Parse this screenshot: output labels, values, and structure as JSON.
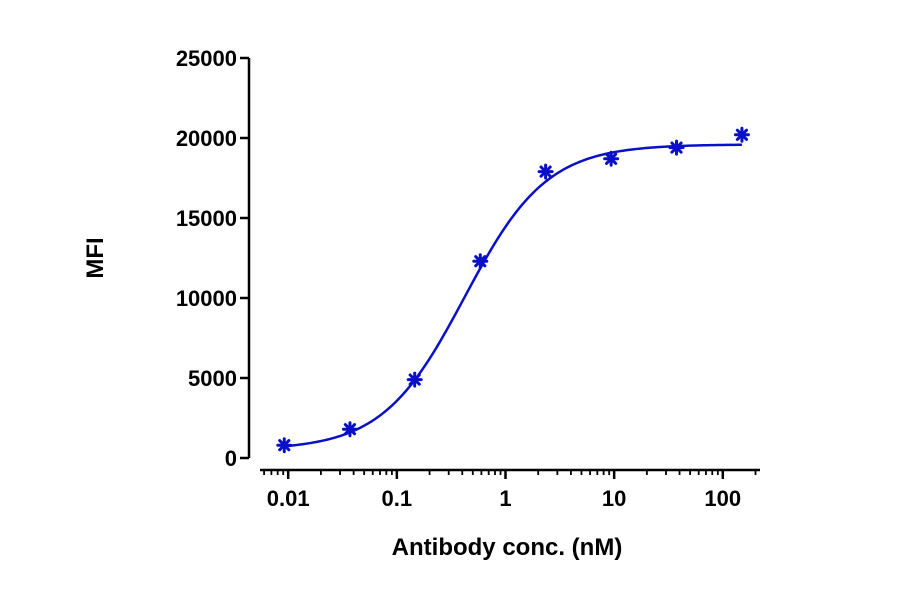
{
  "chart_data": {
    "type": "scatter",
    "title": "",
    "xlabel": "Antibody conc. (nM)",
    "ylabel": "MFI",
    "x_scale": "log",
    "xlim": [
      0.0055,
      220
    ],
    "ylim": [
      0,
      25000
    ],
    "x_ticks": [
      0.01,
      0.1,
      1,
      10,
      100
    ],
    "x_tick_labels": [
      "0.01",
      "0.1",
      "1",
      "10",
      "100"
    ],
    "y_ticks": [
      0,
      5000,
      10000,
      15000,
      20000,
      25000
    ],
    "y_tick_labels": [
      "0",
      "5000",
      "10000",
      "15000",
      "20000",
      "25000"
    ],
    "grid": false,
    "legend": "none",
    "series": [
      {
        "x": [
          0.0092,
          0.037,
          0.146,
          0.586,
          2.34,
          9.38,
          37.5,
          150
        ],
        "y": [
          800,
          1800,
          4900,
          12300,
          17900,
          18700,
          19400,
          20200
        ]
      }
    ],
    "fit": {
      "model": "4PL",
      "bottom": 500,
      "top": 19600,
      "ec50": 0.42,
      "hill": 1.15
    },
    "colors": {
      "series": "#0a10c8",
      "axis": "#000000"
    }
  }
}
